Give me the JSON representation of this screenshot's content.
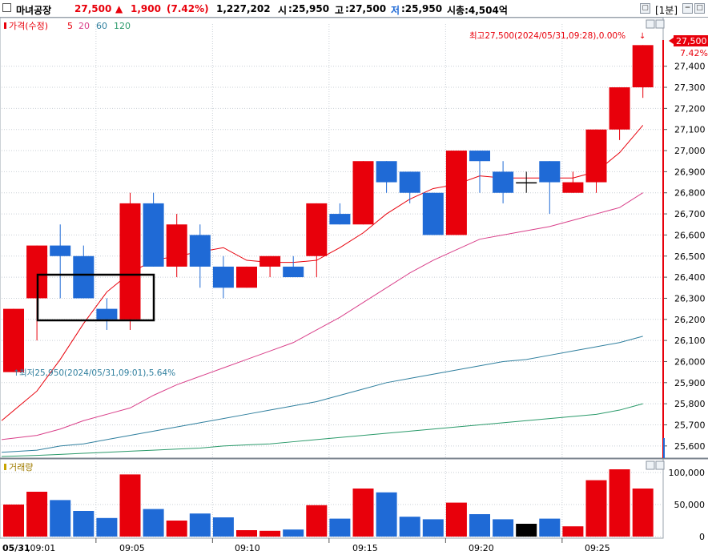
{
  "header": {
    "stock_name": "마녀공장",
    "price": "27,500",
    "change_arrow": "▲",
    "change": "1,900",
    "change_pct": "(7.42%)",
    "volume": "1,227,202",
    "open_label": "시",
    "open": ":25,950",
    "high_label": "고",
    "high": ":27,500",
    "low_label": "저",
    "low": ":25,950",
    "mktcap": "시총:4,504억",
    "interval": "[1분]",
    "colors": {
      "up": "#e8000b",
      "down": "#1f6ad6",
      "text": "#000000"
    }
  },
  "price_panel": {
    "legend_price": "가격(수정)",
    "legend_ma": [
      "5",
      "20",
      "60",
      "120"
    ],
    "ma_colors": [
      "#e8000b",
      "#d9408a",
      "#2f7f9e",
      "#2a9a6a"
    ],
    "high_annotation": "최고27,500(2024/05/31,09:28),0.00%",
    "low_annotation": "최저25,950(2024/05/31,09:01),5.64%",
    "current_price_tag": "27,500",
    "current_pct_tag": "7.42%"
  },
  "volume_panel": {
    "legend": "거래량"
  },
  "chart_data": {
    "type": "candlestick",
    "title": "",
    "x": [
      "09:01",
      "09:02",
      "09:03",
      "09:04",
      "09:05",
      "09:06",
      "09:07",
      "09:08",
      "09:09",
      "09:10",
      "09:11",
      "09:12",
      "09:13",
      "09:14",
      "09:15",
      "09:16",
      "09:17",
      "09:18",
      "09:19",
      "09:20",
      "09:21",
      "09:22",
      "09:23",
      "09:24",
      "09:25",
      "09:26",
      "09:27",
      "09:28"
    ],
    "ohlc": [
      [
        25950,
        26250,
        25950,
        26250
      ],
      [
        26300,
        26550,
        26100,
        26550
      ],
      [
        26550,
        26650,
        26300,
        26500
      ],
      [
        26500,
        26550,
        26300,
        26300
      ],
      [
        26250,
        26300,
        26150,
        26200
      ],
      [
        26200,
        26800,
        26150,
        26750
      ],
      [
        26750,
        26800,
        26450,
        26450
      ],
      [
        26450,
        26700,
        26400,
        26650
      ],
      [
        26600,
        26650,
        26350,
        26450
      ],
      [
        26450,
        26500,
        26300,
        26350
      ],
      [
        26350,
        26450,
        26350,
        26450
      ],
      [
        26450,
        26500,
        26400,
        26500
      ],
      [
        26450,
        26500,
        26400,
        26400
      ],
      [
        26500,
        26750,
        26400,
        26750
      ],
      [
        26700,
        26750,
        26650,
        26650
      ],
      [
        26650,
        26950,
        26650,
        26950
      ],
      [
        26950,
        26950,
        26800,
        26850
      ],
      [
        26900,
        26900,
        26750,
        26800
      ],
      [
        26800,
        26800,
        26600,
        26600
      ],
      [
        26600,
        27000,
        26600,
        27000
      ],
      [
        27000,
        27000,
        26800,
        26950
      ],
      [
        26900,
        26950,
        26750,
        26800
      ],
      [
        26850,
        26900,
        26800,
        26850
      ],
      [
        26950,
        26950,
        26700,
        26850
      ],
      [
        26800,
        26900,
        26800,
        26850
      ],
      [
        26850,
        27100,
        26800,
        27100
      ],
      [
        27100,
        27300,
        27050,
        27300
      ],
      [
        27300,
        27500,
        27250,
        27500
      ]
    ],
    "volume": [
      50000,
      70000,
      57000,
      40000,
      29000,
      97000,
      43000,
      25000,
      36000,
      30000,
      10000,
      9000,
      11000,
      49000,
      28000,
      75000,
      69000,
      31000,
      27000,
      53000,
      35000,
      27000,
      20000,
      28000,
      16000,
      88000,
      105000,
      75000
    ],
    "ma5": [
      25720,
      25860,
      26010,
      26180,
      26330,
      26420,
      26480,
      26500,
      26520,
      26540,
      26480,
      26470,
      26470,
      26480,
      26540,
      26610,
      26700,
      26770,
      26820,
      26840,
      26880,
      26870,
      26870,
      26870,
      26870,
      26900,
      26990,
      27120
    ],
    "ma20": [
      25630,
      25650,
      25680,
      25720,
      25750,
      25780,
      25840,
      25890,
      25930,
      25970,
      26010,
      26050,
      26090,
      26150,
      26210,
      26280,
      26350,
      26420,
      26480,
      26530,
      26580,
      26600,
      26620,
      26640,
      26670,
      26700,
      26730,
      26800
    ],
    "ma60": [
      25570,
      25580,
      25600,
      25610,
      25630,
      25650,
      25670,
      25690,
      25710,
      25730,
      25750,
      25770,
      25790,
      25810,
      25840,
      25870,
      25900,
      25920,
      25940,
      25960,
      25980,
      26000,
      26010,
      26030,
      26050,
      26070,
      26090,
      26120
    ],
    "ma120": [
      25550,
      25555,
      25560,
      25565,
      25570,
      25575,
      25580,
      25585,
      25590,
      25600,
      25605,
      25610,
      25620,
      25630,
      25640,
      25650,
      25660,
      25670,
      25680,
      25690,
      25700,
      25710,
      25720,
      25730,
      25740,
      25750,
      25770,
      25800
    ],
    "y_ticks": [
      "27,400",
      "27,300",
      "27,200",
      "27,100",
      "27,000",
      "26,900",
      "26,800",
      "26,700",
      "26,600",
      "26,500",
      "26,400",
      "26,300",
      "26,200",
      "26,100",
      "26,000",
      "25,900",
      "25,800",
      "25,700",
      "25,600"
    ],
    "y_tick_values": [
      27400,
      27300,
      27200,
      27100,
      27000,
      26900,
      26800,
      26700,
      26600,
      26500,
      26400,
      26300,
      26200,
      26100,
      26000,
      25900,
      25800,
      25700,
      25600
    ],
    "ylim": [
      25550,
      27600
    ],
    "volume_ticks": [
      "100,000",
      "50,000",
      "0"
    ],
    "volume_tick_values": [
      100000,
      50000,
      0
    ],
    "volume_ylim": [
      0,
      115000
    ],
    "x_tick_labels": [
      "05/31",
      ",09:01",
      "09:05",
      "09:10",
      "09:15",
      "09:20",
      "09:25"
    ],
    "grid": true,
    "colors": {
      "up": "#e8000b",
      "down": "#1f6ad6",
      "flat": "#000000"
    }
  }
}
